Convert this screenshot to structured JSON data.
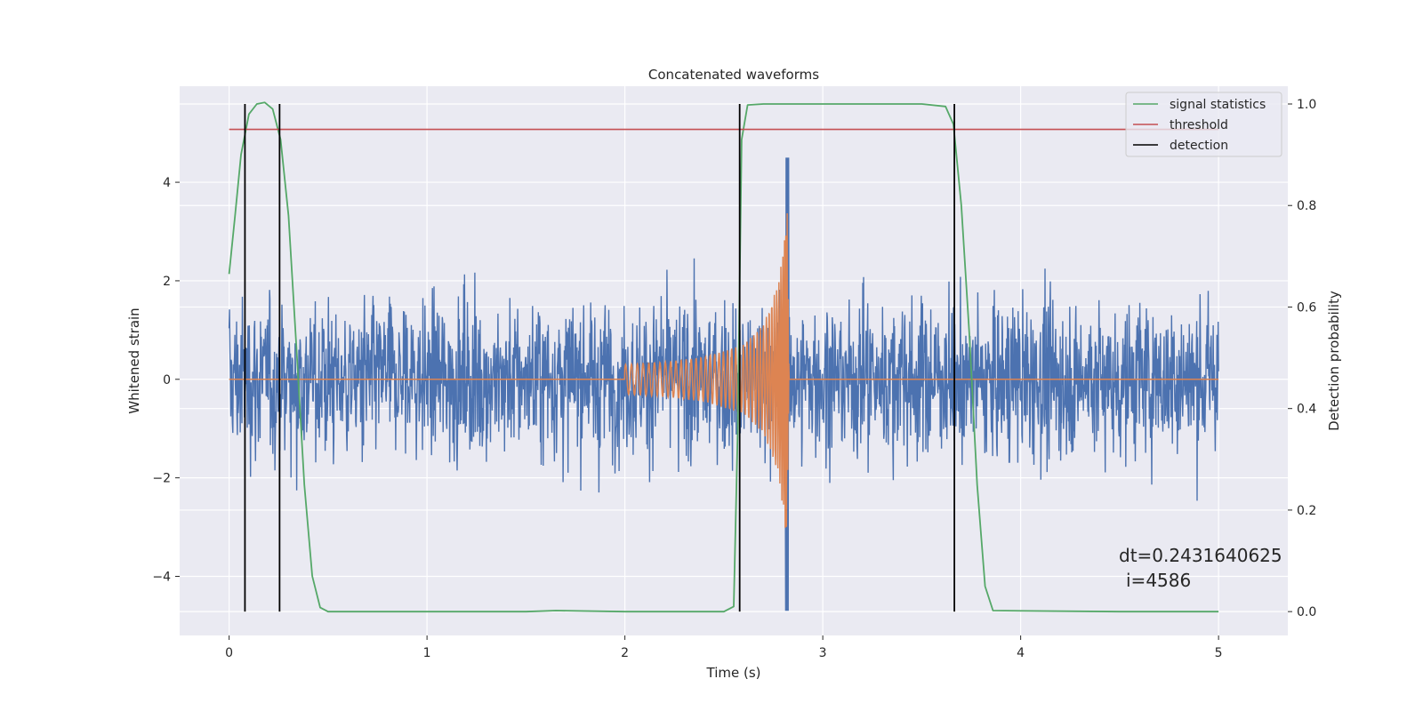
{
  "chart_data": {
    "type": "line",
    "title": "Concatenated waveforms",
    "xlabel": "Time (s)",
    "ylabel_left": "Whitened strain",
    "ylabel_right": "Detection probability",
    "xlim": [
      -0.25,
      5.35
    ],
    "ylim_left": [
      -5.2,
      5.95
    ],
    "ylim_right": [
      -0.047,
      1.035
    ],
    "x_ticks": [
      0,
      1,
      2,
      3,
      4,
      5
    ],
    "y_left_ticks": [
      -4,
      -2,
      0,
      2,
      4
    ],
    "y_right_ticks": [
      0.0,
      0.2,
      0.4,
      0.6,
      0.8,
      1.0
    ],
    "y_left_tick_labels": [
      "−4",
      "−2",
      "0",
      "2",
      "4"
    ],
    "y_right_tick_labels": [
      "0.0",
      "0.2",
      "0.4",
      "0.6",
      "0.8",
      "1.0"
    ],
    "grid": true,
    "legend_position": "top-right",
    "colors": {
      "strain": "#4c72b0",
      "template": "#dd8452",
      "signal_statistics": "#55a868",
      "threshold": "#c44e52",
      "detection": "#000000",
      "background": "#eaeaf2",
      "grid": "#ffffff"
    },
    "series": [
      {
        "name": "",
        "axis": "left",
        "description": "whitened strain noise, amplitude envelope about ±3 with peaks to ~4.5 near t=2.82",
        "x_range": [
          0,
          5
        ],
        "envelope": 3.3
      },
      {
        "name": "",
        "axis": "left",
        "description": "chirp waveform",
        "x": [
          0,
          2.0,
          2.2,
          2.4,
          2.6,
          2.7,
          2.78,
          2.82,
          2.83,
          5.0
        ],
        "amplitude": [
          0,
          0.3,
          0.35,
          0.45,
          0.7,
          1.1,
          2.0,
          3.4,
          0,
          0
        ]
      },
      {
        "name": "signal statistics",
        "axis": "right",
        "x": [
          0,
          0.03,
          0.06,
          0.1,
          0.14,
          0.18,
          0.22,
          0.26,
          0.3,
          0.34,
          0.38,
          0.42,
          0.46,
          0.5,
          1.0,
          1.5,
          1.65,
          2.0,
          2.5,
          2.55,
          2.57,
          2.59,
          2.62,
          2.7,
          3.0,
          3.5,
          3.62,
          3.66,
          3.7,
          3.74,
          3.78,
          3.82,
          3.86,
          4.5,
          5.0
        ],
        "y": [
          0.665,
          0.78,
          0.9,
          0.98,
          1.0,
          1.003,
          0.99,
          0.93,
          0.78,
          0.52,
          0.25,
          0.07,
          0.008,
          0.0,
          0.0,
          0.0,
          0.002,
          0.0,
          0.0,
          0.01,
          0.35,
          0.93,
          0.998,
          1.0,
          1.0,
          1.0,
          0.995,
          0.96,
          0.8,
          0.55,
          0.25,
          0.05,
          0.002,
          0.0,
          0.0
        ]
      },
      {
        "name": "threshold",
        "axis": "right",
        "x": [
          0,
          5
        ],
        "y": [
          0.95,
          0.95
        ]
      },
      {
        "name": "detection",
        "axis": "right",
        "x": [
          0.08,
          0.255,
          2.58,
          3.665
        ],
        "y_range": [
          0,
          1
        ]
      }
    ],
    "annotations": [
      "dt=0.2431640625",
      "i=4586"
    ]
  }
}
